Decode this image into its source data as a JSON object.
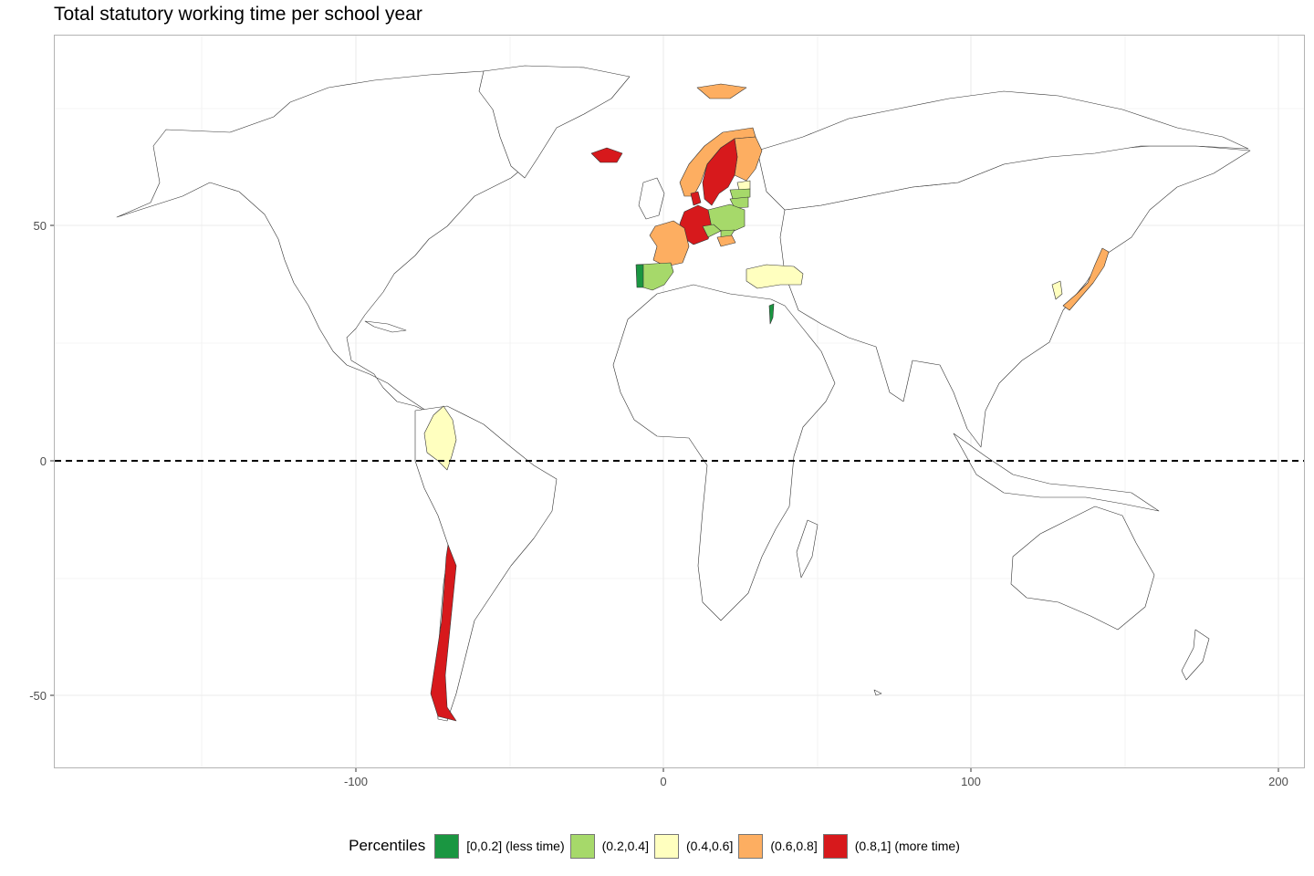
{
  "title": "Total statutory working time per school year",
  "axes": {
    "x_ticks": [
      "-100",
      "0",
      "100",
      "200"
    ],
    "y_ticks": [
      "50",
      "0",
      "-50"
    ]
  },
  "legend": {
    "title": "Percentiles",
    "items": [
      {
        "label": "[0,0.2] (less time)",
        "color": "#1a9641"
      },
      {
        "label": "(0.2,0.4]",
        "color": "#a6d96a"
      },
      {
        "label": "(0.4,0.6]",
        "color": "#ffffbf"
      },
      {
        "label": "(0.6,0.8]",
        "color": "#fdae61"
      },
      {
        "label": "(0.8,1] (more time)",
        "color": "#d7191c"
      }
    ]
  },
  "chart_data": {
    "type": "choropleth",
    "xlim": [
      -198,
      209
    ],
    "ylim": [
      -65,
      91
    ],
    "grid": true,
    "equator_line": "dashed",
    "legend_position": "bottom",
    "bins": {
      "(0.8,1] (more time)": [
        "Iceland",
        "Sweden",
        "Germany",
        "Chile",
        "Denmark"
      ],
      "(0.6,0.8]": [
        "Norway",
        "Finland",
        "Svalbard",
        "France",
        "Japan",
        "Hungary"
      ],
      "(0.4,0.6]": [
        "Colombia",
        "Turkey",
        "South Korea",
        "Estonia"
      ],
      "(0.2,0.4]": [
        "Spain",
        "Poland",
        "Lithuania",
        "Latvia",
        "Czech Republic",
        "Slovakia"
      ],
      "[0,0.2] (less time)": [
        "Portugal",
        "Israel"
      ]
    }
  }
}
